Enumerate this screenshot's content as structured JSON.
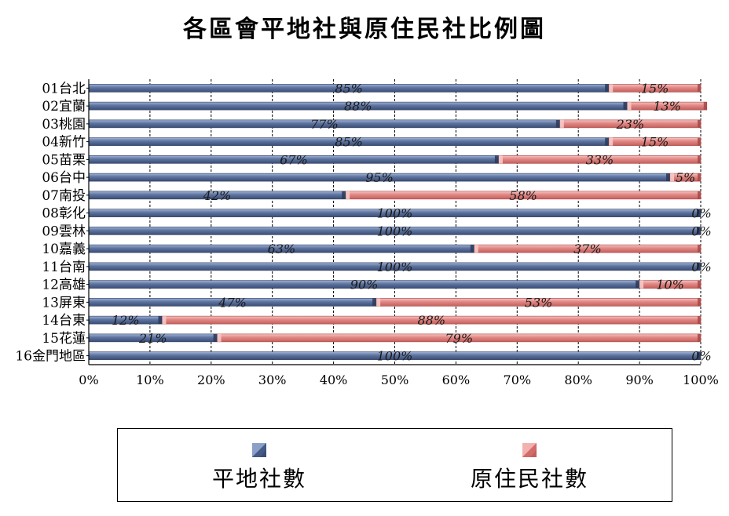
{
  "title": "各區會平地社與原住民社比例圖",
  "colors": {
    "series1": "#4a5f8a",
    "series1_light": "#8aa0c8",
    "series2": "#d9706f",
    "series2_light": "#f2b0ae",
    "axis": "#000000",
    "grid": "#000000"
  },
  "legend": [
    {
      "label": "平地社數",
      "series": 0
    },
    {
      "label": "原住民社數",
      "series": 1
    }
  ],
  "chart_data": {
    "type": "bar",
    "orientation": "horizontal",
    "stacked": "percent",
    "title": "各區會平地社與原住民社比例圖",
    "categories": [
      "01台北",
      "02宜蘭",
      "03桃園",
      "04新竹",
      "05苗栗",
      "06台中",
      "07南投",
      "08彰化",
      "09雲林",
      "10嘉義",
      "11台南",
      "12高雄",
      "13屏東",
      "14台東",
      "15花蓮",
      "16金門地區"
    ],
    "series": [
      {
        "name": "平地社數",
        "values": [
          85,
          88,
          77,
          85,
          67,
          95,
          42,
          100,
          100,
          63,
          100,
          90,
          47,
          12,
          21,
          100
        ],
        "labels": [
          "85%",
          "88%",
          "77%",
          "85%",
          "67%",
          "95%",
          "42%",
          "100%",
          "100%",
          "63%",
          "100%",
          "90%",
          "47%",
          "12%",
          "21%",
          "100%"
        ]
      },
      {
        "name": "原住民社數",
        "values": [
          15,
          13,
          23,
          15,
          33,
          5,
          58,
          0,
          0,
          37,
          0,
          10,
          53,
          88,
          79,
          0
        ],
        "labels": [
          "15%",
          "13%",
          "23%",
          "15%",
          "33%",
          "5%",
          "58%",
          "0%",
          "0%",
          "37%",
          "0%",
          "10%",
          "53%",
          "88%",
          "79%",
          "0%"
        ]
      }
    ],
    "xlim": [
      0,
      100
    ],
    "xticks": [
      "0%",
      "10%",
      "20%",
      "30%",
      "40%",
      "50%",
      "60%",
      "70%",
      "80%",
      "90%",
      "100%"
    ],
    "grid": true,
    "grid_style": "dashed vertical",
    "legend_position": "bottom"
  }
}
